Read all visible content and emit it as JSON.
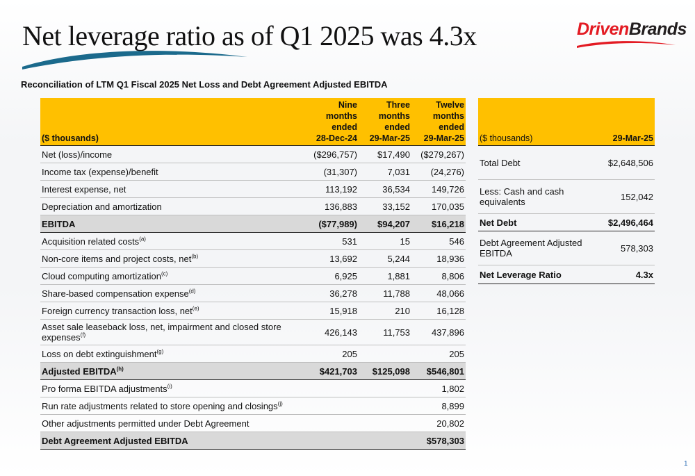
{
  "header": {
    "title": "Net leverage ratio as of Q1 2025 was 4.3x",
    "logo_part1": "Driven",
    "logo_part2": "Brands",
    "subtitle": "Reconciliation of LTM Q1 Fiscal 2025 Net Loss and Debt Agreement Adjusted EBITDA"
  },
  "colors": {
    "header_fill": "#ffc000",
    "total_fill": "#d9d9d9",
    "swoosh": "#1b6a8c",
    "logo_red": "#e31b23"
  },
  "left_table": {
    "col0": "($ thousands)",
    "col1": [
      "Nine months",
      "ended",
      "28-Dec-24"
    ],
    "col2": [
      "Three months",
      "ended",
      "29-Mar-25"
    ],
    "col3": [
      "Twelve",
      "months",
      "ended",
      "29-Mar-25"
    ],
    "rows": [
      {
        "label": "Net (loss)/income",
        "sup": "",
        "v1": "($296,757)",
        "v2": "$17,490",
        "v3": "($279,267)"
      },
      {
        "label": "Income tax (expense)/benefit",
        "sup": "",
        "v1": "(31,307)",
        "v2": "7,031",
        "v3": "(24,276)"
      },
      {
        "label": "Interest expense, net",
        "sup": "",
        "v1": "113,192",
        "v2": "36,534",
        "v3": "149,726"
      },
      {
        "label": "Depreciation and amortization",
        "sup": "",
        "v1": "136,883",
        "v2": "33,152",
        "v3": "170,035"
      },
      {
        "label": "EBITDA",
        "sup": "",
        "v1": "($77,989)",
        "v2": "$94,207",
        "v3": "$16,218"
      },
      {
        "label": "Acquisition related costs",
        "sup": "(a)",
        "v1": "531",
        "v2": "15",
        "v3": "546"
      },
      {
        "label": "Non-core items and project costs, net",
        "sup": "(b)",
        "v1": "13,692",
        "v2": "5,244",
        "v3": "18,936"
      },
      {
        "label": "Cloud computing amortization",
        "sup": "(c)",
        "v1": "6,925",
        "v2": "1,881",
        "v3": "8,806"
      },
      {
        "label": "Share-based compensation expense",
        "sup": "(d)",
        "v1": "36,278",
        "v2": "11,788",
        "v3": "48,066"
      },
      {
        "label": "Foreign currency transaction loss, net",
        "sup": "(e)",
        "v1": "15,918",
        "v2": "210",
        "v3": "16,128"
      },
      {
        "label": "Asset sale leaseback loss, net, impairment and closed store expenses",
        "sup": "(f)",
        "v1": "426,143",
        "v2": "11,753",
        "v3": "437,896"
      },
      {
        "label": "Loss on debt extinguishment",
        "sup": "(g)",
        "v1": "205",
        "v2": "",
        "v3": "205"
      },
      {
        "label": "Adjusted EBITDA",
        "sup": "(h)",
        "v1": "$421,703",
        "v2": "$125,098",
        "v3": "$546,801"
      },
      {
        "label": "Pro forma EBITDA adjustments",
        "sup": "(i)",
        "v1": "",
        "v2": "",
        "v3": "1,802"
      },
      {
        "label": "Run rate adjustments related to store opening and closings",
        "sup": "(j)",
        "v1": "",
        "v2": "",
        "v3": "8,899"
      },
      {
        "label": "Other adjustments permitted under Debt Agreement",
        "sup": "",
        "v1": "",
        "v2": "",
        "v3": "20,802"
      },
      {
        "label": "Debt Agreement Adjusted EBITDA",
        "sup": "",
        "v1": "",
        "v2": "",
        "v3": "$578,303"
      }
    ]
  },
  "right_table": {
    "col0": "($ thousands)",
    "col1": "29-Mar-25",
    "rows": [
      {
        "label": "Total Debt",
        "value": "$2,648,506"
      },
      {
        "label": "Less: Cash and cash equivalents",
        "value": "152,042"
      },
      {
        "label": "Net Debt",
        "value": "$2,496,464"
      },
      {
        "label": "Debt Agreement Adjusted EBITDA",
        "value": "578,303"
      },
      {
        "label": "Net Leverage Ratio",
        "value": "4.3x"
      }
    ]
  },
  "page_number": "1"
}
